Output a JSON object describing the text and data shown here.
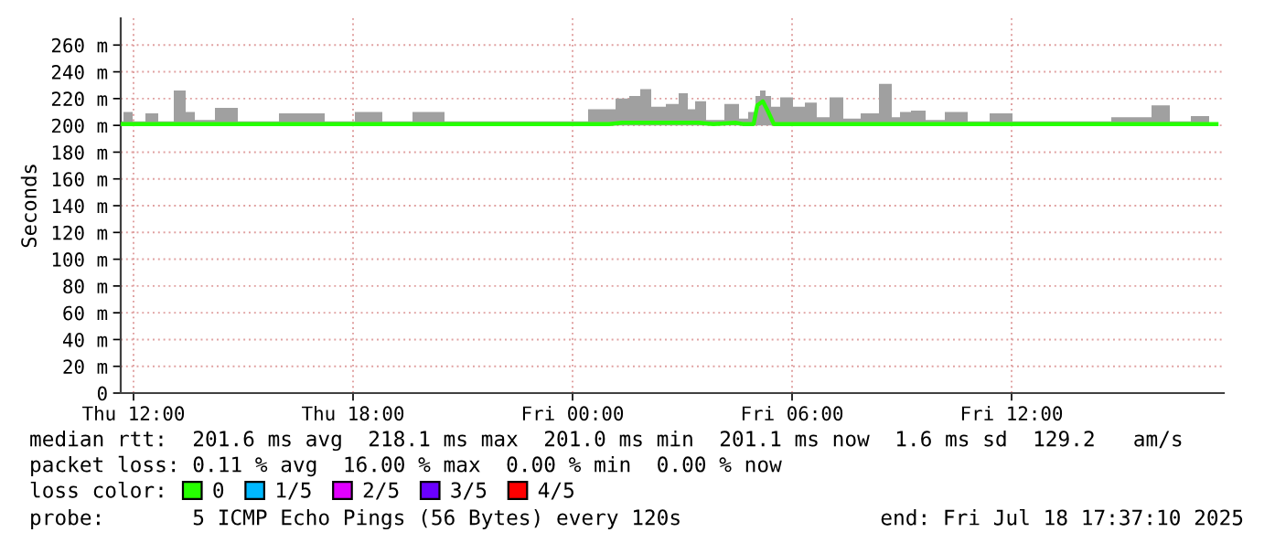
{
  "chart_data": {
    "type": "line",
    "ylabel": "Seconds",
    "xlim": [
      "2025-07-17T11:39",
      "2025-07-18T17:48"
    ],
    "xticks": [
      {
        "value": "2025-07-17T12:00",
        "label": "Thu 12:00"
      },
      {
        "value": "2025-07-17T18:00",
        "label": "Thu 18:00"
      },
      {
        "value": "2025-07-18T00:00",
        "label": "Fri 00:00"
      },
      {
        "value": "2025-07-18T06:00",
        "label": "Fri 06:00"
      },
      {
        "value": "2025-07-18T12:00",
        "label": "Fri 12:00"
      }
    ],
    "ylim": [
      0,
      280
    ],
    "yticks": [
      0,
      {
        "value": 20,
        "label": "20 m"
      },
      {
        "value": 40,
        "label": "40 m"
      },
      {
        "value": 60,
        "label": "60 m"
      },
      {
        "value": 80,
        "label": "80 m"
      },
      {
        "value": 100,
        "label": "100 m"
      },
      {
        "value": 120,
        "label": "120 m"
      },
      {
        "value": 140,
        "label": "140 m"
      },
      {
        "value": 160,
        "label": "160 m"
      },
      {
        "value": 180,
        "label": "180 m"
      },
      {
        "value": 200,
        "label": "200 m"
      },
      {
        "value": 220,
        "label": "220 m"
      },
      {
        "value": 240,
        "label": "240 m"
      },
      {
        "value": 260,
        "label": "260 m"
      }
    ],
    "grid": true,
    "legend": "bottom left",
    "legend_title": "loss color:",
    "x": [
      "2025-07-17T11:39",
      "2025-07-17T11:48",
      "2025-07-17T12:09",
      "2025-07-17T12:30",
      "2025-07-17T12:51",
      "2025-07-17T13:21",
      "2025-07-17T13:30",
      "2025-07-17T13:51",
      "2025-07-17T14:36",
      "2025-07-17T15:06",
      "2025-07-17T16:51",
      "2025-07-17T17:36",
      "2025-07-17T18:30",
      "2025-07-17T19:06",
      "2025-07-17T20:09",
      "2025-07-17T20:51",
      "2025-07-17T22:21",
      "2025-07-17T23:51",
      "2025-07-18T01:00",
      "2025-07-18T01:21",
      "2025-07-18T01:45",
      "2025-07-18T01:57",
      "2025-07-18T02:21",
      "2025-07-18T02:45",
      "2025-07-18T03:03",
      "2025-07-18T03:15",
      "2025-07-18T03:27",
      "2025-07-18T03:51",
      "2025-07-18T04:27",
      "2025-07-18T04:39",
      "2025-07-18T04:57",
      "2025-07-18T05:03",
      "2025-07-18T05:12",
      "2025-07-18T05:21",
      "2025-07-18T05:30",
      "2025-07-18T05:51",
      "2025-07-18T06:12",
      "2025-07-18T06:30",
      "2025-07-18T06:51",
      "2025-07-18T07:12",
      "2025-07-18T07:36",
      "2025-07-18T08:09",
      "2025-07-18T08:36",
      "2025-07-18T08:51",
      "2025-07-18T09:03",
      "2025-07-18T09:27",
      "2025-07-18T09:51",
      "2025-07-18T10:30",
      "2025-07-18T11:06",
      "2025-07-18T11:42",
      "2025-07-18T12:21",
      "2025-07-18T13:51",
      "2025-07-18T15:36",
      "2025-07-18T16:03",
      "2025-07-18T16:36",
      "2025-07-18T17:12",
      "2025-07-18T17:36"
    ],
    "series": [
      {
        "name": "0",
        "color": "#26ff00",
        "values": [
          201,
          201,
          201,
          201,
          201,
          201,
          201,
          201,
          201,
          201,
          201,
          201,
          201,
          201,
          201,
          201,
          201,
          201,
          201,
          202,
          202,
          202,
          202,
          202,
          202,
          202,
          202,
          201,
          202,
          201,
          201,
          215,
          218,
          210,
          201,
          201,
          201,
          201,
          201,
          201,
          201,
          201,
          201,
          201,
          201,
          201,
          201,
          201,
          201,
          201,
          201,
          201,
          201,
          201,
          201,
          201,
          201
        ],
        "lower": [
          200,
          200,
          200,
          200,
          200,
          200,
          200,
          200,
          200,
          200,
          200,
          200,
          200,
          200,
          200,
          200,
          200,
          200,
          200,
          200,
          200,
          200,
          200,
          200,
          200,
          200,
          200,
          200,
          200,
          200,
          200,
          200,
          200,
          200,
          200,
          200,
          200,
          200,
          200,
          200,
          200,
          200,
          200,
          200,
          200,
          200,
          200,
          200,
          200,
          200,
          200,
          200,
          200,
          200,
          200,
          200,
          200
        ],
        "upper": [
          203,
          210,
          203,
          209,
          203,
          226,
          210,
          204,
          213,
          203,
          209,
          203,
          210,
          203,
          210,
          203,
          203,
          203,
          212,
          220,
          222,
          227,
          214,
          216,
          224,
          212,
          218,
          204,
          216,
          205,
          210,
          222,
          226,
          222,
          214,
          221,
          214,
          217,
          206,
          221,
          205,
          209,
          231,
          206,
          210,
          211,
          204,
          210,
          203,
          209,
          203,
          203,
          206,
          215,
          203,
          207,
          202
        ]
      },
      {
        "name": "1/5",
        "color": "#00b8ff",
        "values": [
          null,
          null,
          null,
          null,
          null,
          null,
          null,
          null,
          null,
          null,
          null,
          null,
          null,
          null,
          null,
          null,
          null,
          null,
          null,
          null,
          null,
          null,
          null,
          null,
          null,
          null,
          null,
          null,
          null,
          null,
          null,
          null,
          null,
          null,
          null,
          null,
          null,
          null,
          null,
          null,
          null,
          null,
          null,
          null,
          null,
          null,
          null,
          null,
          null,
          null,
          null,
          null,
          null,
          null,
          null,
          null,
          null
        ]
      },
      {
        "name": "2/5",
        "color": "#e100ff",
        "values": [
          null,
          null,
          null,
          null,
          null,
          null,
          null,
          null,
          null,
          null,
          null,
          null,
          null,
          null,
          null,
          null,
          null,
          null,
          null,
          null,
          null,
          null,
          null,
          null,
          null,
          null,
          null,
          null,
          null,
          null,
          null,
          null,
          null,
          null,
          null,
          null,
          null,
          null,
          null,
          null,
          null,
          null,
          null,
          null,
          null,
          null,
          null,
          null,
          null,
          null,
          null,
          null,
          null,
          null,
          null,
          null,
          null
        ]
      },
      {
        "name": "3/5",
        "color": "#6a00ff",
        "values": [
          null,
          null,
          null,
          null,
          null,
          null,
          null,
          null,
          null,
          null,
          null,
          null,
          null,
          null,
          null,
          null,
          null,
          null,
          null,
          null,
          null,
          null,
          null,
          null,
          null,
          null,
          null,
          null,
          null,
          null,
          null,
          null,
          null,
          null,
          null,
          null,
          null,
          null,
          null,
          null,
          null,
          null,
          null,
          null,
          null,
          null,
          null,
          null,
          null,
          null,
          null,
          null,
          null,
          null,
          null,
          null,
          null
        ]
      },
      {
        "name": "4/5",
        "color": "#ff0000",
        "values": [
          null,
          null,
          null,
          null,
          null,
          null,
          null,
          null,
          null,
          null,
          null,
          null,
          null,
          null,
          null,
          null,
          null,
          null,
          null,
          null,
          null,
          null,
          null,
          null,
          null,
          null,
          null,
          null,
          null,
          null,
          null,
          null,
          null,
          null,
          null,
          null,
          null,
          null,
          null,
          null,
          null,
          null,
          null,
          null,
          null,
          null,
          null,
          null,
          null,
          null,
          null,
          null,
          null,
          null,
          null,
          null,
          null
        ]
      }
    ],
    "annotations": [
      "median rtt:  201.6 ms avg  218.1 ms max  201.0 ms min  201.1 ms now  1.6 ms sd  129.2   am/s",
      "packet loss: 0.11 % avg  16.00 % max  0.00 % min  0.00 % now",
      "probe:       5 ICMP Echo Pings (56 Bytes) every 120s",
      "end: Fri Jul 18 17:37:10 2025"
    ]
  }
}
